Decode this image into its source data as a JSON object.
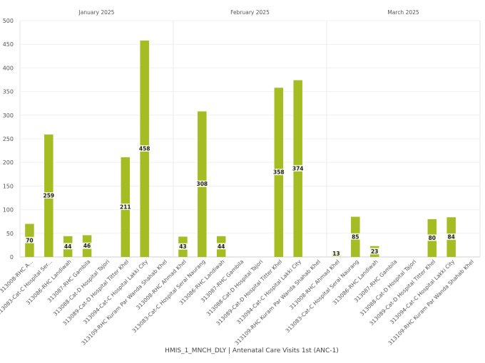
{
  "chart_data": {
    "type": "bar",
    "xlabel": "HMIS_1_MNCH_DLY | Antenatal Care Visits 1st (ANC-1)",
    "ylim": [
      0,
      500
    ],
    "yticks": [
      0,
      50,
      100,
      150,
      200,
      250,
      300,
      350,
      400,
      450,
      500
    ],
    "grid": true,
    "legend": "none",
    "bar_color": "#a5bd22",
    "groups": [
      {
        "month": "January 2025",
        "categories": [
          "313008-RHC A...",
          "313083-Cat-C Hospital Ser...",
          "313086-RHC Landiwah",
          "313087-RHC Gambila",
          "313088-Cat-D Hospital Tajori",
          "313089-Cat-D Hospital Titter Khel",
          "313094-Cat-C Hospital Lakki City",
          "313109-RHC Kuram Par Wanda Shahab Khel"
        ],
        "values": [
          70,
          259,
          44,
          46,
          null,
          211,
          458,
          null
        ]
      },
      {
        "month": "February 2025",
        "categories": [
          "313008-RHC Ahmad Khel",
          "313083-Cat-C Hospital Serai Naurang",
          "313086-RHC Landiwah",
          "313087-RHC Gambila",
          "313088-Cat-D Hospital Tajori",
          "313089-Cat-D Hospital Titter Khel",
          "313094-Cat-C Hospital Lakki City",
          "313109-RHC Kuram Par Wanda Shahab Khel"
        ],
        "values": [
          43,
          308,
          44,
          null,
          null,
          358,
          374,
          null
        ]
      },
      {
        "month": "March 2025",
        "categories": [
          "313008-RHC Ahmad Khel",
          "313083-Cat-C Hospital Serai Naurang",
          "313086-RHC Landiwah",
          "313087-RHC Gambila",
          "313088-Cat-D Hospital Tajori",
          "313089-Cat-D Hospital Titter Khel",
          "313094-Cat-C Hospital Lakki City",
          "313109-RHC Kuram Par Wanda Shahab Khel"
        ],
        "values": [
          13,
          85,
          23,
          null,
          null,
          80,
          84,
          null
        ]
      }
    ]
  }
}
